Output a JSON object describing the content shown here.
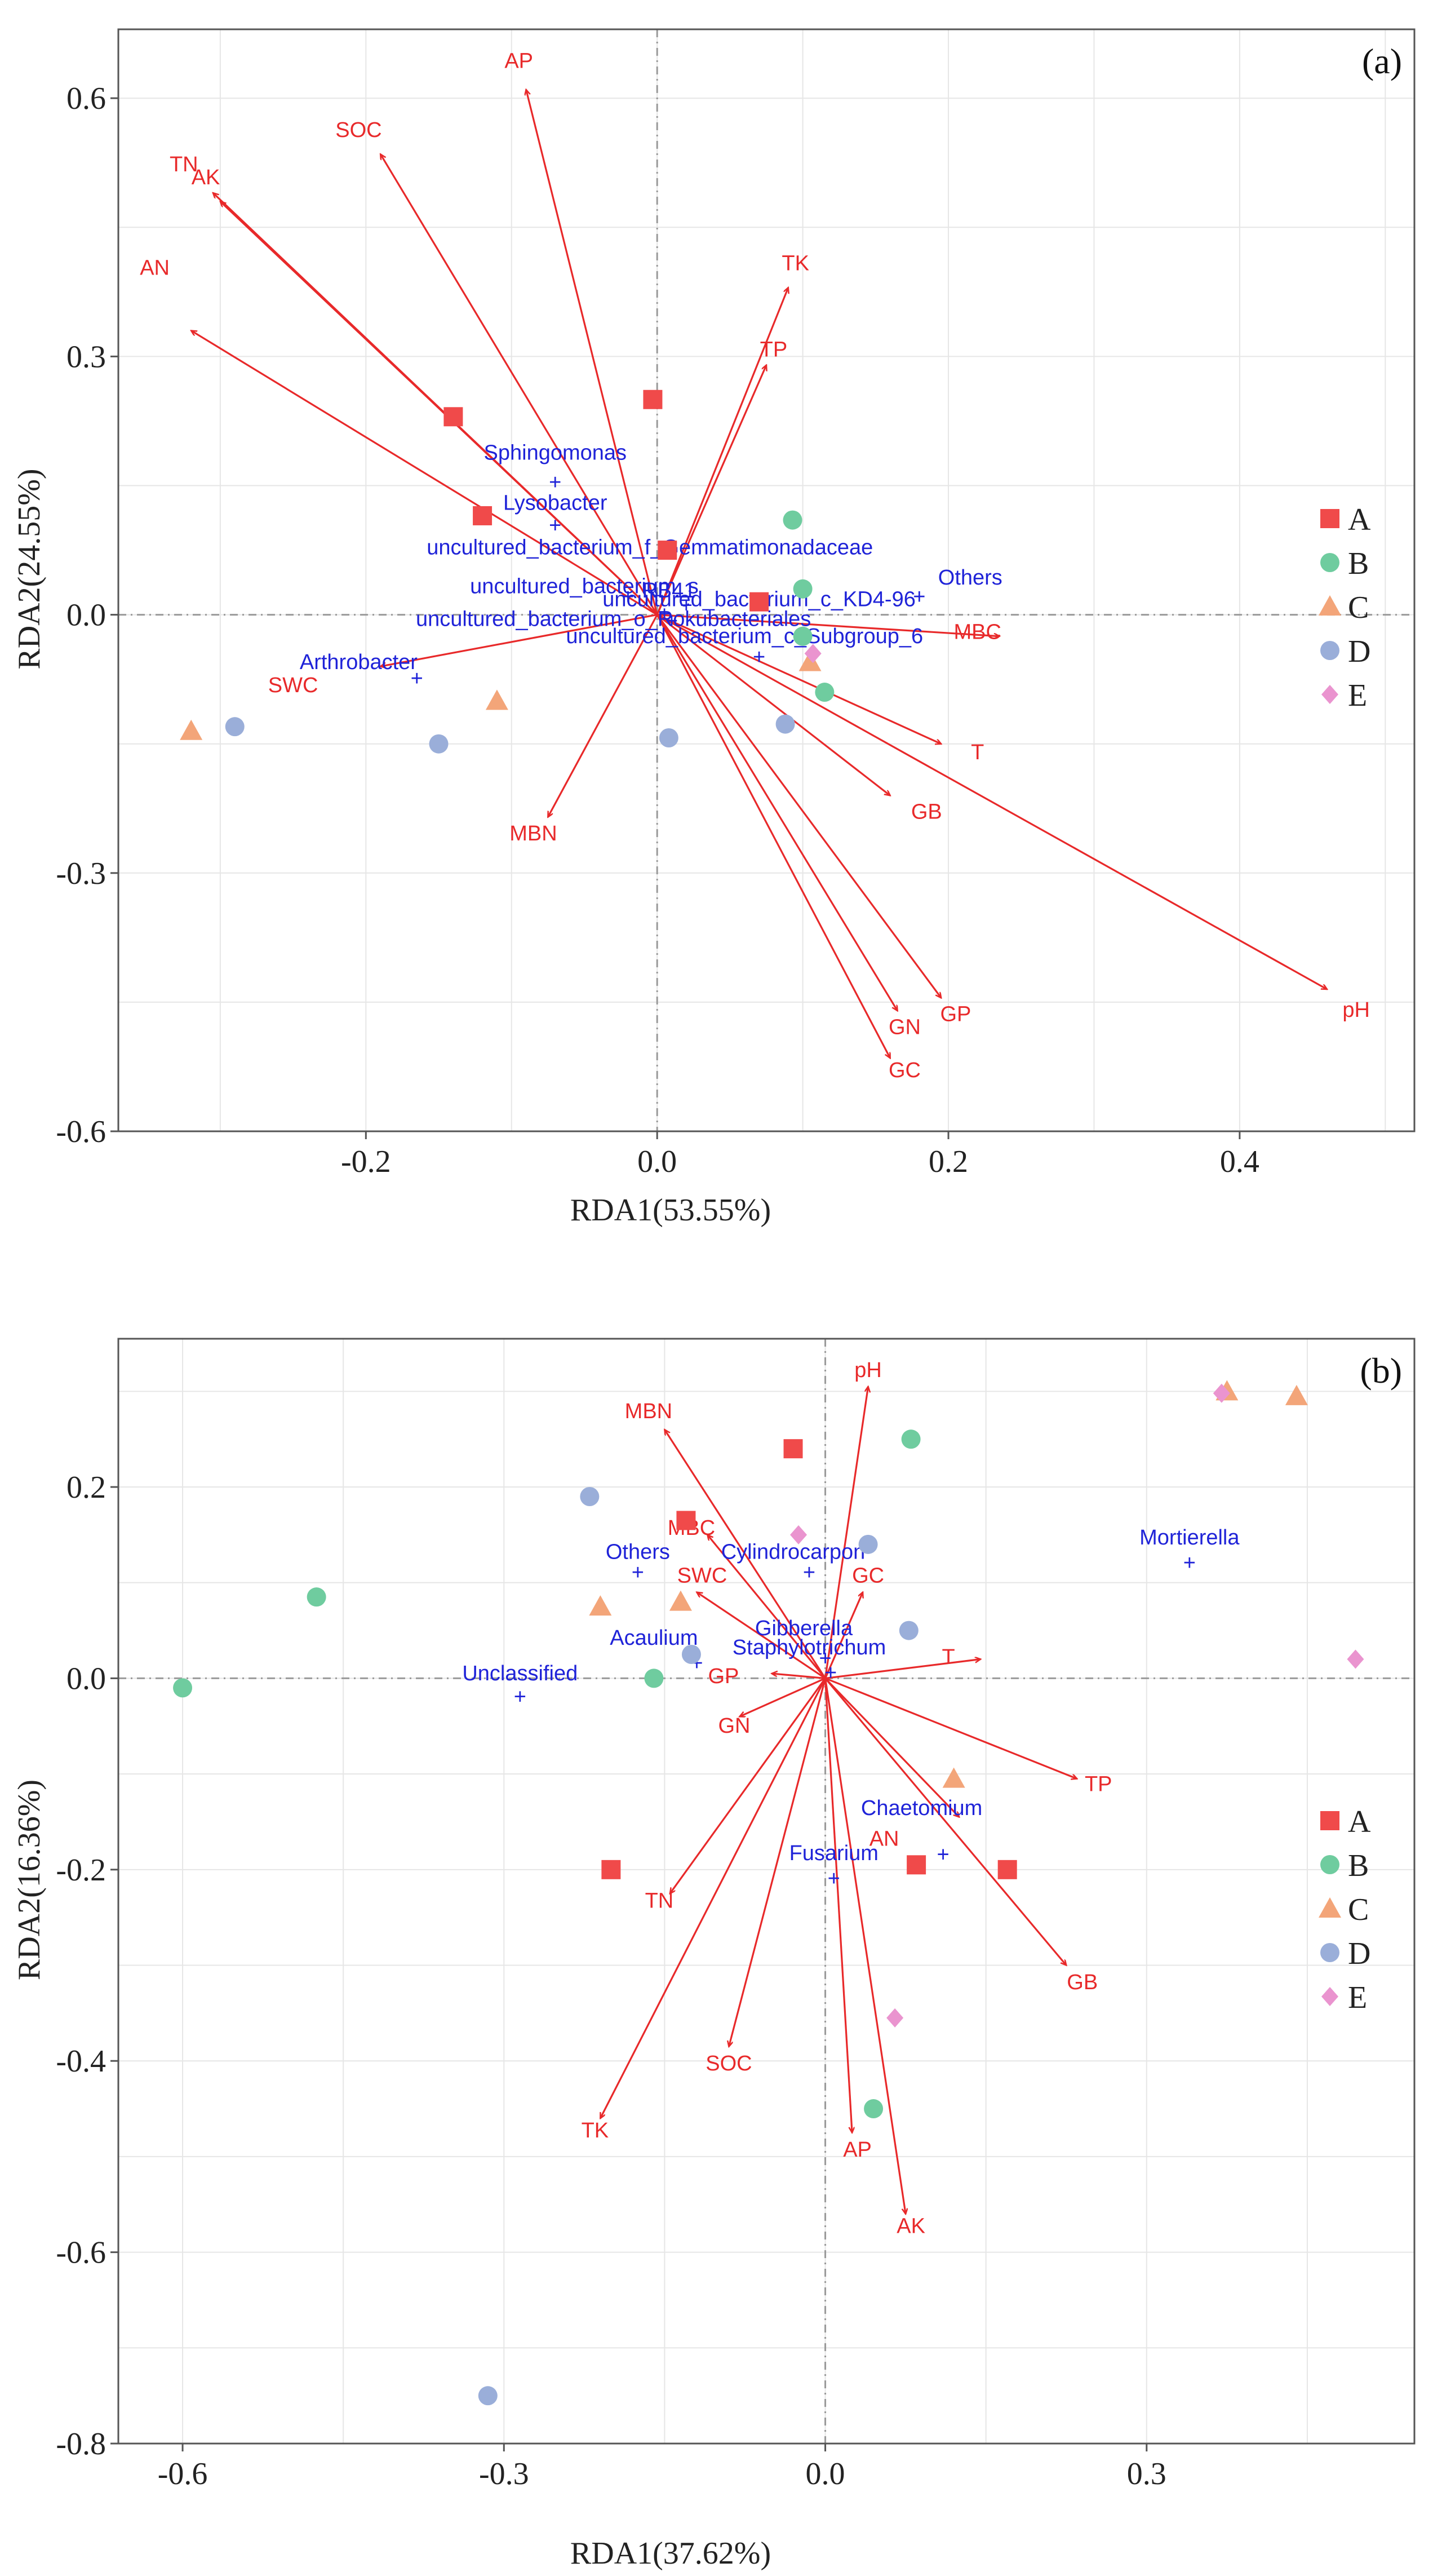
{
  "colors": {
    "arrow": "#e8292a",
    "taxon": "#1f23d8",
    "grid": "#e6e6e6",
    "refline": "#9a9a9a",
    "frame": "#555555",
    "A": "#f04a4a",
    "B": "#6fcc9f",
    "C": "#f3a579",
    "D": "#9aaed9",
    "E": "#ea94cf"
  },
  "legend": {
    "groups": [
      {
        "name": "A",
        "shape": "square"
      },
      {
        "name": "B",
        "shape": "circle"
      },
      {
        "name": "C",
        "shape": "triangle"
      },
      {
        "name": "D",
        "shape": "circle"
      },
      {
        "name": "E",
        "shape": "diamond"
      }
    ]
  },
  "chart_data": [
    {
      "type": "scatter",
      "panel": "(a)",
      "xlabel": "RDA1(53.55%)",
      "ylabel": "RDA2(24.55%)",
      "xlim": [
        -0.37,
        0.52
      ],
      "ylim": [
        -0.6,
        0.68
      ],
      "xticks": [
        {
          "v": -0.2,
          "label": "-0.2"
        },
        {
          "v": 0.0,
          "label": "0.0"
        },
        {
          "v": 0.2,
          "label": "0.2"
        },
        {
          "v": 0.4,
          "label": "0.4"
        }
      ],
      "yticks": [
        {
          "v": -0.6,
          "label": "-0.6"
        },
        {
          "v": -0.3,
          "label": "-0.3"
        },
        {
          "v": 0.0,
          "label": "0.0"
        },
        {
          "v": 0.3,
          "label": "0.3"
        },
        {
          "v": 0.6,
          "label": "0.6"
        }
      ],
      "env_vectors": [
        {
          "name": "AP",
          "x": -0.09,
          "y": 0.61,
          "lx": -0.095,
          "ly": 0.635
        },
        {
          "name": "SOC",
          "x": -0.19,
          "y": 0.535,
          "lx": -0.205,
          "ly": 0.555
        },
        {
          "name": "TN",
          "x": -0.305,
          "y": 0.49,
          "lx": -0.325,
          "ly": 0.515
        },
        {
          "name": "AK",
          "x": -0.3,
          "y": 0.48,
          "lx": -0.31,
          "ly": 0.5
        },
        {
          "name": "AN",
          "x": -0.32,
          "y": 0.33,
          "lx": -0.345,
          "ly": 0.395
        },
        {
          "name": "TK",
          "x": 0.09,
          "y": 0.38,
          "lx": 0.095,
          "ly": 0.4
        },
        {
          "name": "TP",
          "x": 0.075,
          "y": 0.29,
          "lx": 0.08,
          "ly": 0.3
        },
        {
          "name": "SWC",
          "x": -0.19,
          "y": -0.06,
          "lx": -0.25,
          "ly": -0.09
        },
        {
          "name": "MBN",
          "x": -0.075,
          "y": -0.235,
          "lx": -0.085,
          "ly": -0.262
        },
        {
          "name": "MBC",
          "x": 0.235,
          "y": -0.025,
          "lx": 0.22,
          "ly": -0.028
        },
        {
          "name": "T",
          "x": 0.195,
          "y": -0.15,
          "lx": 0.22,
          "ly": -0.168
        },
        {
          "name": "GB",
          "x": 0.16,
          "y": -0.21,
          "lx": 0.185,
          "ly": -0.237
        },
        {
          "name": "pH",
          "x": 0.46,
          "y": -0.435,
          "lx": 0.48,
          "ly": -0.467
        },
        {
          "name": "GP",
          "x": 0.195,
          "y": -0.445,
          "lx": 0.205,
          "ly": -0.472
        },
        {
          "name": "GN",
          "x": 0.165,
          "y": -0.46,
          "lx": 0.17,
          "ly": -0.487
        },
        {
          "name": "GC",
          "x": 0.16,
          "y": -0.515,
          "lx": 0.17,
          "ly": -0.537
        }
      ],
      "taxa": [
        {
          "name": "Sphingomonas",
          "x": -0.07,
          "y": 0.153,
          "lx": -0.07,
          "ly": 0.18
        },
        {
          "name": "Lysobacter",
          "x": -0.07,
          "y": 0.103,
          "lx": -0.07,
          "ly": 0.122
        },
        {
          "name": "uncultured_bacterium_f_Gemmatimonadaceae",
          "x": 0.005,
          "y": 0.072,
          "lx": -0.005,
          "ly": 0.07
        },
        {
          "name": "Others",
          "x": 0.18,
          "y": 0.02,
          "lx": 0.215,
          "ly": 0.035
        },
        {
          "name": "uncultured_bacterium_c_KD4-96",
          "x": 0.02,
          "y": 0.01,
          "lx": 0.07,
          "ly": 0.01
        },
        {
          "name": "uncultured_bacterium_o_Rokubacteriales",
          "x": 0.01,
          "y": -0.008,
          "lx": -0.03,
          "ly": -0.013
        },
        {
          "name": "uncultured_bacterium_c_Subgroup_6",
          "x": 0.07,
          "y": -0.05,
          "lx": 0.06,
          "ly": -0.033
        },
        {
          "name": "Arthrobacter",
          "x": -0.165,
          "y": -0.075,
          "lx": -0.205,
          "ly": -0.063
        },
        {
          "name": "uncultured_bacterium_s",
          "x": -0.02,
          "y": 0.02,
          "lx": -0.05,
          "ly": 0.025
        },
        {
          "name": "RB41",
          "x": 0.005,
          "y": 0.0,
          "lx": 0.008,
          "ly": 0.02
        }
      ],
      "samples": [
        {
          "g": "A",
          "x": -0.14,
          "y": 0.23
        },
        {
          "g": "A",
          "x": -0.12,
          "y": 0.115
        },
        {
          "g": "A",
          "x": -0.003,
          "y": 0.25
        },
        {
          "g": "A",
          "x": 0.007,
          "y": 0.075
        },
        {
          "g": "A",
          "x": 0.07,
          "y": 0.015
        },
        {
          "g": "B",
          "x": 0.093,
          "y": 0.11
        },
        {
          "g": "B",
          "x": 0.1,
          "y": 0.03
        },
        {
          "g": "B",
          "x": 0.1,
          "y": -0.025
        },
        {
          "g": "B",
          "x": 0.115,
          "y": -0.09
        },
        {
          "g": "C",
          "x": -0.32,
          "y": -0.135
        },
        {
          "g": "C",
          "x": -0.11,
          "y": -0.1
        },
        {
          "g": "C",
          "x": 0.105,
          "y": -0.055
        },
        {
          "g": "D",
          "x": -0.29,
          "y": -0.13
        },
        {
          "g": "D",
          "x": -0.15,
          "y": -0.15
        },
        {
          "g": "D",
          "x": 0.008,
          "y": -0.143
        },
        {
          "g": "D",
          "x": 0.088,
          "y": -0.127
        },
        {
          "g": "E",
          "x": 0.107,
          "y": -0.045
        }
      ]
    },
    {
      "type": "scatter",
      "panel": "(b)",
      "xlabel": "RDA1(37.62%)",
      "ylabel": "RDA2(16.36%)",
      "xlim": [
        -0.66,
        0.55
      ],
      "ylim": [
        -0.8,
        0.355
      ],
      "xticks": [
        {
          "v": -0.6,
          "label": "-0.6"
        },
        {
          "v": -0.3,
          "label": "-0.3"
        },
        {
          "v": 0.0,
          "label": "0.0"
        },
        {
          "v": 0.3,
          "label": "0.3"
        }
      ],
      "yticks": [
        {
          "v": -0.8,
          "label": "-0.8"
        },
        {
          "v": -0.6,
          "label": "-0.6"
        },
        {
          "v": -0.4,
          "label": "-0.4"
        },
        {
          "v": -0.2,
          "label": "-0.2"
        },
        {
          "v": 0.0,
          "label": "0.0"
        },
        {
          "v": 0.2,
          "label": "0.2"
        }
      ],
      "env_vectors": [
        {
          "name": "pH",
          "x": 0.04,
          "y": 0.305,
          "lx": 0.04,
          "ly": 0.315
        },
        {
          "name": "MBN",
          "x": -0.15,
          "y": 0.26,
          "lx": -0.165,
          "ly": 0.272
        },
        {
          "name": "MBC",
          "x": -0.11,
          "y": 0.15,
          "lx": -0.125,
          "ly": 0.15
        },
        {
          "name": "SWC",
          "x": -0.12,
          "y": 0.09,
          "lx": -0.115,
          "ly": 0.1
        },
        {
          "name": "GC",
          "x": 0.035,
          "y": 0.09,
          "lx": 0.04,
          "ly": 0.1
        },
        {
          "name": "T",
          "x": 0.145,
          "y": 0.02,
          "lx": 0.115,
          "ly": 0.015
        },
        {
          "name": "GP",
          "x": -0.05,
          "y": 0.005,
          "lx": -0.095,
          "ly": -0.005
        },
        {
          "name": "GN",
          "x": -0.08,
          "y": -0.04,
          "lx": -0.085,
          "ly": -0.057
        },
        {
          "name": "TP",
          "x": 0.235,
          "y": -0.105,
          "lx": 0.255,
          "ly": -0.118
        },
        {
          "name": "AN",
          "x": 0.125,
          "y": -0.145,
          "lx": 0.055,
          "ly": -0.175
        },
        {
          "name": "GB",
          "x": 0.225,
          "y": -0.3,
          "lx": 0.24,
          "ly": -0.325
        },
        {
          "name": "TN",
          "x": -0.145,
          "y": -0.225,
          "lx": -0.155,
          "ly": -0.24
        },
        {
          "name": "SOC",
          "x": -0.09,
          "y": -0.385,
          "lx": -0.09,
          "ly": -0.41
        },
        {
          "name": "TK",
          "x": -0.21,
          "y": -0.46,
          "lx": -0.215,
          "ly": -0.48
        },
        {
          "name": "AP",
          "x": 0.025,
          "y": -0.475,
          "lx": 0.03,
          "ly": -0.5
        },
        {
          "name": "AK",
          "x": 0.075,
          "y": -0.56,
          "lx": 0.08,
          "ly": -0.58
        }
      ],
      "taxa": [
        {
          "name": "Mortierella",
          "x": 0.34,
          "y": 0.12,
          "lx": 0.34,
          "ly": 0.14
        },
        {
          "name": "Others",
          "x": -0.175,
          "y": 0.11,
          "lx": -0.175,
          "ly": 0.125
        },
        {
          "name": "Cylindrocarpon",
          "x": -0.015,
          "y": 0.11,
          "lx": -0.03,
          "ly": 0.125
        },
        {
          "name": "Gibberella",
          "x": 0.0,
          "y": 0.02,
          "lx": -0.02,
          "ly": 0.045
        },
        {
          "name": "Acaulium",
          "x": -0.12,
          "y": 0.015,
          "lx": -0.16,
          "ly": 0.035
        },
        {
          "name": "Staphylotrichum",
          "x": 0.005,
          "y": 0.005,
          "lx": -0.015,
          "ly": 0.025
        },
        {
          "name": "Unclassified",
          "x": -0.285,
          "y": -0.02,
          "lx": -0.285,
          "ly": -0.002
        },
        {
          "name": "Chaetomium",
          "x": 0.11,
          "y": -0.185,
          "lx": 0.09,
          "ly": -0.143
        },
        {
          "name": "Fusarium",
          "x": 0.008,
          "y": -0.21,
          "lx": 0.008,
          "ly": -0.19
        }
      ],
      "samples": [
        {
          "g": "A",
          "x": -0.03,
          "y": 0.24
        },
        {
          "g": "A",
          "x": -0.13,
          "y": 0.165
        },
        {
          "g": "A",
          "x": -0.2,
          "y": -0.2
        },
        {
          "g": "A",
          "x": 0.085,
          "y": -0.195
        },
        {
          "g": "A",
          "x": 0.17,
          "y": -0.2
        },
        {
          "g": "B",
          "x": 0.08,
          "y": 0.25
        },
        {
          "g": "B",
          "x": -0.475,
          "y": 0.085
        },
        {
          "g": "B",
          "x": -0.6,
          "y": -0.01
        },
        {
          "g": "B",
          "x": -0.16,
          "y": 0.0
        },
        {
          "g": "B",
          "x": 0.045,
          "y": -0.45
        },
        {
          "g": "C",
          "x": 0.375,
          "y": 0.3
        },
        {
          "g": "C",
          "x": 0.44,
          "y": 0.295
        },
        {
          "g": "C",
          "x": -0.21,
          "y": 0.075
        },
        {
          "g": "C",
          "x": -0.135,
          "y": 0.08
        },
        {
          "g": "C",
          "x": 0.12,
          "y": -0.105
        },
        {
          "g": "D",
          "x": -0.22,
          "y": 0.19
        },
        {
          "g": "D",
          "x": 0.04,
          "y": 0.14
        },
        {
          "g": "D",
          "x": -0.125,
          "y": 0.025
        },
        {
          "g": "D",
          "x": 0.078,
          "y": 0.05
        },
        {
          "g": "D",
          "x": -0.315,
          "y": -0.75
        },
        {
          "g": "E",
          "x": 0.37,
          "y": 0.298
        },
        {
          "g": "E",
          "x": -0.025,
          "y": 0.15
        },
        {
          "g": "E",
          "x": 0.495,
          "y": 0.02
        },
        {
          "g": "E",
          "x": 0.065,
          "y": -0.355
        }
      ]
    }
  ]
}
